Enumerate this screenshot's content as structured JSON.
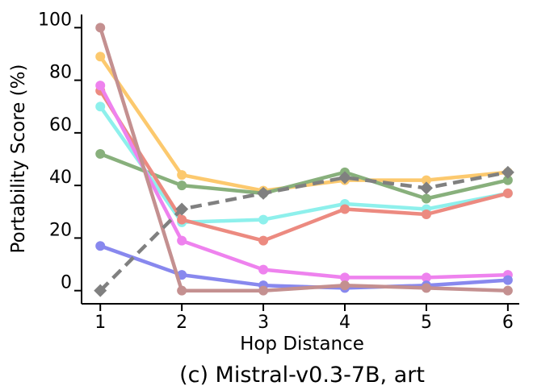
{
  "chart_data": {
    "type": "line",
    "caption": "(c) Mistral-v0.3-7B, art",
    "xlabel": "Hop Distance",
    "ylabel": "Portability Score (%)",
    "x": [
      1,
      2,
      3,
      4,
      5,
      6
    ],
    "x_ticks": [
      "1",
      "2",
      "3",
      "4",
      "5",
      "6"
    ],
    "y_ticks": [
      "0",
      "20",
      "40",
      "60",
      "80",
      "100"
    ],
    "xlim": [
      0.77,
      6.14
    ],
    "ylim": [
      -5,
      105
    ],
    "grid": false,
    "legend": "none",
    "series": [
      {
        "color": "#fcc96e",
        "marker": "circle",
        "dashed": false,
        "values": [
          89,
          44,
          38,
          42,
          42,
          45
        ]
      },
      {
        "color": "#88b07c",
        "marker": "circle",
        "dashed": false,
        "values": [
          52,
          40,
          37,
          45,
          35,
          42
        ]
      },
      {
        "color": "#8ef0ec",
        "marker": "circle",
        "dashed": false,
        "values": [
          70,
          26,
          27,
          33,
          31,
          37
        ]
      },
      {
        "color": "#ec8a80",
        "marker": "circle",
        "dashed": false,
        "values": [
          76,
          27,
          19,
          31,
          29,
          37
        ]
      },
      {
        "color": "#ee82ee",
        "marker": "circle",
        "dashed": false,
        "values": [
          78,
          19,
          8,
          5,
          5,
          6
        ]
      },
      {
        "color": "#8888ee",
        "marker": "circle",
        "dashed": false,
        "values": [
          17,
          6,
          2,
          1,
          2,
          4
        ]
      },
      {
        "color": "#c49090",
        "marker": "circle",
        "dashed": false,
        "values": [
          100,
          0,
          0,
          2,
          1,
          0
        ]
      },
      {
        "color": "#808080",
        "marker": "diamond",
        "dashed": true,
        "values": [
          0,
          31,
          37,
          43,
          39,
          45
        ]
      }
    ]
  }
}
